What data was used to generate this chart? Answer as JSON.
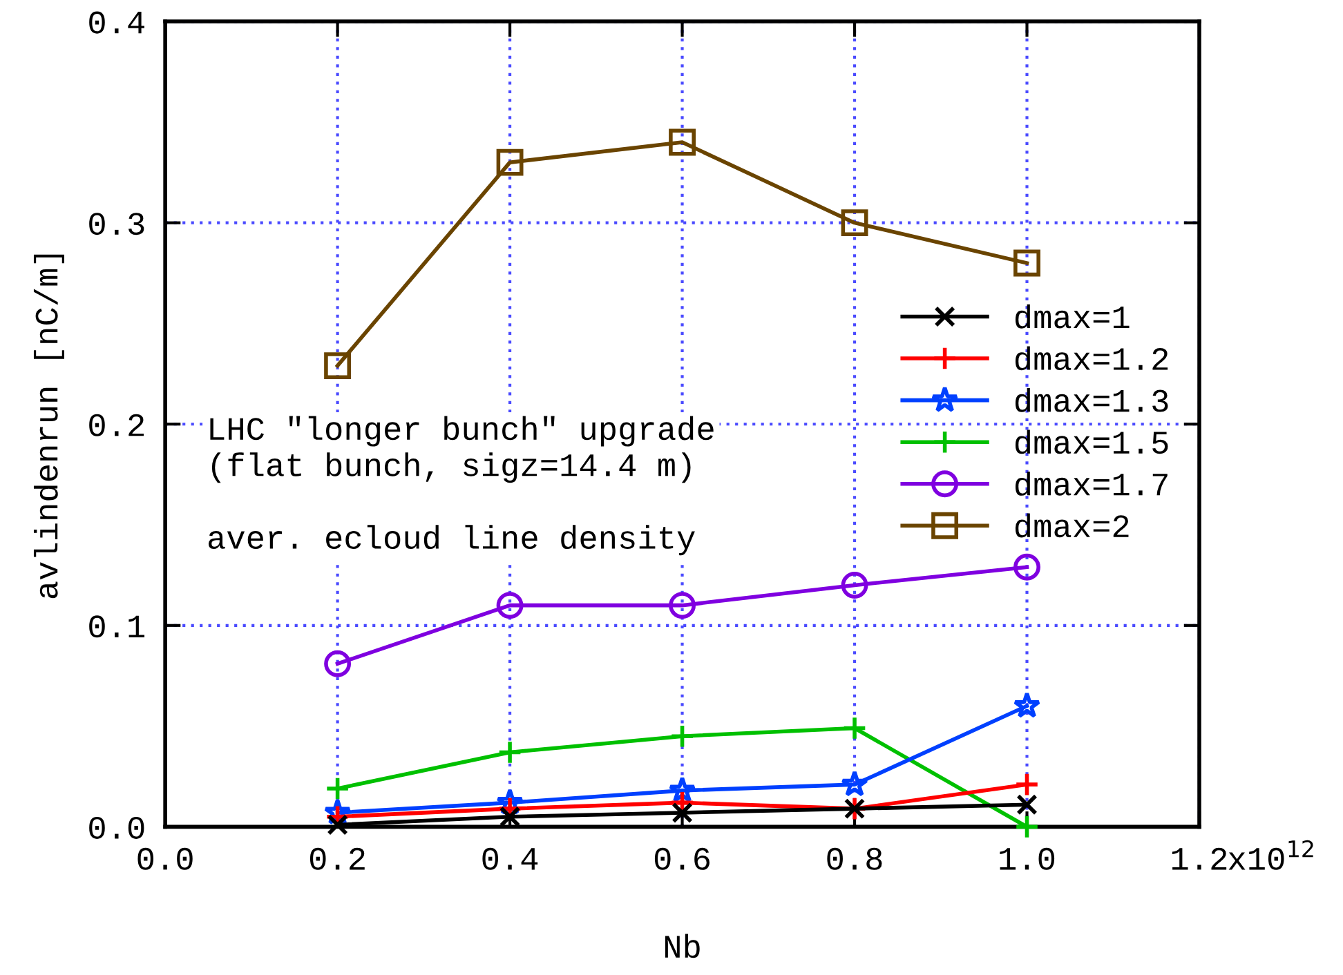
{
  "chart_data": {
    "type": "line",
    "xlabel": "Nb",
    "ylabel": "avlindenrun [nC/m]",
    "x": [
      0.2,
      0.4,
      0.6,
      0.8,
      1.0
    ],
    "xlim": [
      0.0,
      1.2
    ],
    "xticks": [
      {
        "value": 0.0,
        "label": "0.0"
      },
      0.2,
      0.4,
      0.6,
      0.8,
      {
        "value": 1.0,
        "label": "1.0"
      },
      1.2
    ],
    "ylim": [
      0.0,
      0.4
    ],
    "yticks": [
      {
        "value": 0.0,
        "label": "0.0"
      },
      0.1,
      0.2,
      0.3,
      0.4
    ],
    "grid": true,
    "legend": "right",
    "annotations": [
      "LHC \"longer bunch\" upgrade\n(flat bunch, sigz=14.4 m)\n\naver. ecloud line density",
      "x10$^{12}$"
    ],
    "series": [
      {
        "name": "dmax=1",
        "color": "#000000",
        "marker": "cross",
        "values": [
          0.001,
          0.005,
          0.007,
          0.009,
          0.011
        ]
      },
      {
        "name": "dmax=1.2",
        "color": "#ff0000",
        "marker": "plus",
        "values": [
          0.005,
          0.009,
          0.012,
          0.009,
          0.021
        ]
      },
      {
        "name": "dmax=1.3",
        "color": "#0040ff",
        "marker": "star",
        "values": [
          0.007,
          0.012,
          0.018,
          0.021,
          0.06
        ]
      },
      {
        "name": "dmax=1.5",
        "color": "#00c000",
        "marker": "plus",
        "values": [
          0.019,
          0.037,
          0.045,
          0.049,
          0.0
        ]
      },
      {
        "name": "dmax=1.7",
        "color": "#7f00e0",
        "marker": "circle",
        "values": [
          0.081,
          0.11,
          0.11,
          0.12,
          0.129
        ]
      },
      {
        "name": "dmax=2",
        "color": "#6a4400",
        "marker": "square",
        "values": [
          0.229,
          0.33,
          0.34,
          0.3,
          0.28
        ]
      }
    ]
  }
}
